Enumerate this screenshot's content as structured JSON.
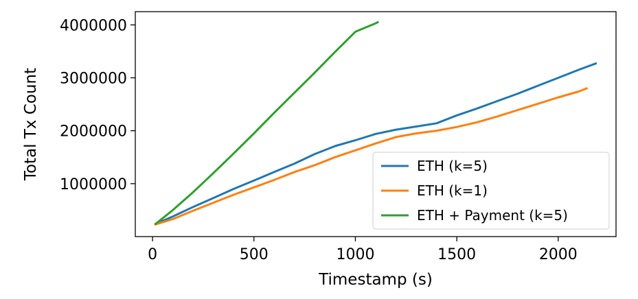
{
  "chart_data": {
    "type": "line",
    "title": "",
    "xlabel": "Timestamp (s)",
    "ylabel": "Total Tx Count",
    "xlim": [
      -85,
      2285
    ],
    "ylim": [
      0,
      4250000
    ],
    "xticks": [
      0,
      500,
      1000,
      1500,
      2000
    ],
    "xtick_labels": [
      "0",
      "500",
      "1000",
      "1500",
      "2000"
    ],
    "yticks": [
      1000000,
      2000000,
      3000000,
      4000000
    ],
    "ytick_labels": [
      "1000000",
      "2000000",
      "3000000",
      "4000000"
    ],
    "grid": false,
    "legend_position": "lower-right",
    "series": [
      {
        "name": "ETH (k=5)",
        "color": "#1f77b4",
        "x": [
          15,
          100,
          200,
          300,
          400,
          500,
          600,
          700,
          800,
          900,
          1000,
          1100,
          1200,
          1300,
          1400,
          1500,
          1600,
          1700,
          1800,
          1900,
          2000,
          2100,
          2185
        ],
        "y": [
          240000,
          380000,
          560000,
          730000,
          900000,
          1060000,
          1220000,
          1380000,
          1560000,
          1710000,
          1820000,
          1940000,
          2020000,
          2080000,
          2140000,
          2290000,
          2420000,
          2560000,
          2700000,
          2850000,
          3000000,
          3150000,
          3270000
        ]
      },
      {
        "name": "ETH (k=1)",
        "color": "#ff7f0e",
        "x": [
          15,
          100,
          200,
          300,
          400,
          500,
          600,
          700,
          800,
          900,
          1000,
          1100,
          1200,
          1300,
          1400,
          1500,
          1600,
          1700,
          1800,
          1900,
          2000,
          2100,
          2140
        ],
        "y": [
          230000,
          330000,
          490000,
          640000,
          790000,
          930000,
          1070000,
          1220000,
          1350000,
          1500000,
          1630000,
          1760000,
          1880000,
          1950000,
          2000000,
          2070000,
          2160000,
          2270000,
          2390000,
          2510000,
          2630000,
          2740000,
          2800000
        ]
      },
      {
        "name": "ETH + Payment (k=5)",
        "color": "#2ca02c",
        "x": [
          15,
          100,
          200,
          300,
          400,
          500,
          600,
          700,
          800,
          900,
          1000,
          1100,
          1110
        ],
        "y": [
          240000,
          500000,
          840000,
          1200000,
          1570000,
          1950000,
          2340000,
          2720000,
          3100000,
          3490000,
          3870000,
          4030000,
          4050000
        ]
      }
    ]
  }
}
